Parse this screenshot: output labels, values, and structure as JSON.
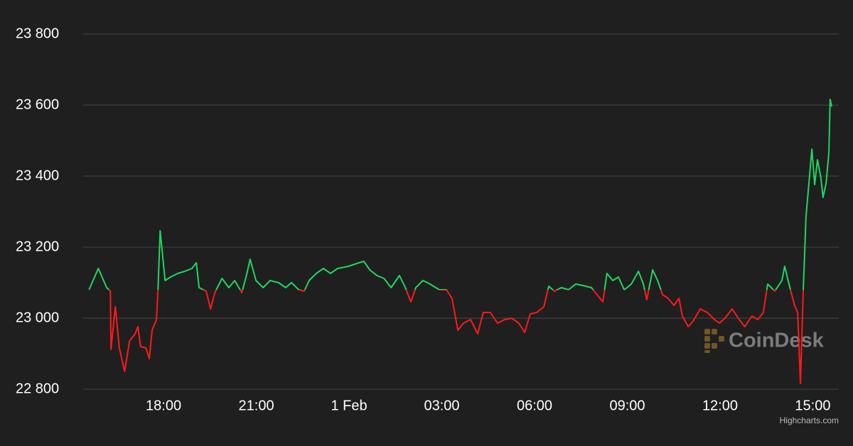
{
  "chart_data": {
    "type": "line",
    "x": [
      15.59,
      15.89,
      16.16,
      16.28,
      16.3,
      16.44,
      16.57,
      16.74,
      16.9,
      17.08,
      17.17,
      17.26,
      17.43,
      17.54,
      17.63,
      17.77,
      17.82,
      17.89,
      18.05,
      18.23,
      18.46,
      18.69,
      18.92,
      19.06,
      19.15,
      19.38,
      19.52,
      19.66,
      19.89,
      20.11,
      20.3,
      20.53,
      20.67,
      20.8,
      20.99,
      21.22,
      21.45,
      21.72,
      21.95,
      22.14,
      22.37,
      22.55,
      22.71,
      22.94,
      23.17,
      23.4,
      23.63,
      23.98,
      24.32,
      24.48,
      24.67,
      24.9,
      25.13,
      25.36,
      25.63,
      25.82,
      26.0,
      26.16,
      26.39,
      26.62,
      26.92,
      27.15,
      27.33,
      27.52,
      27.7,
      27.93,
      28.16,
      28.34,
      28.57,
      28.8,
      29.03,
      29.26,
      29.49,
      29.68,
      29.86,
      30.07,
      30.3,
      30.46,
      30.64,
      30.87,
      31.1,
      31.33,
      31.56,
      31.84,
      32.02,
      32.21,
      32.34,
      32.53,
      32.71,
      32.9,
      33.13,
      33.36,
      33.52,
      33.63,
      33.82,
      33.98,
      34.14,
      34.32,
      34.51,
      34.67,
      34.78,
      34.97,
      35.13,
      35.36,
      35.59,
      35.82,
      35.98,
      36.16,
      36.39,
      36.62,
      36.8,
      37.03,
      37.22,
      37.4,
      37.54,
      37.77,
      38.0,
      38.09,
      38.23,
      38.41,
      38.51,
      38.6,
      38.69,
      38.78,
      38.87,
      38.97,
      39.06,
      39.15,
      39.26,
      39.33,
      39.43,
      39.52,
      39.56,
      39.61
    ],
    "series": [
      {
        "color_up": "#1ed760",
        "color_down": "#ff1a1a",
        "values": [
          23080,
          23140,
          23086,
          23076,
          22912,
          23032,
          22916,
          22850,
          22936,
          22956,
          22976,
          22920,
          22916,
          22886,
          22966,
          22996,
          23080,
          23246,
          23106,
          23116,
          23126,
          23132,
          23140,
          23156,
          23086,
          23076,
          23026,
          23072,
          23112,
          23086,
          23106,
          23072,
          23116,
          23166,
          23106,
          23086,
          23106,
          23100,
          23086,
          23100,
          23080,
          23076,
          23106,
          23126,
          23140,
          23126,
          23140,
          23146,
          23156,
          23160,
          23136,
          23120,
          23112,
          23086,
          23120,
          23086,
          23046,
          23086,
          23106,
          23096,
          23080,
          23080,
          23056,
          22966,
          22986,
          22996,
          22956,
          23016,
          23016,
          22986,
          22996,
          23000,
          22986,
          22960,
          23012,
          23016,
          23032,
          23090,
          23076,
          23086,
          23080,
          23096,
          23092,
          23086,
          23066,
          23046,
          23126,
          23106,
          23116,
          23080,
          23096,
          23132,
          23096,
          23052,
          23136,
          23106,
          23066,
          23056,
          23036,
          23056,
          23006,
          22976,
          22992,
          23026,
          23016,
          22996,
          22986,
          23000,
          23026,
          22996,
          22976,
          23006,
          22996,
          23016,
          23096,
          23076,
          23106,
          23146,
          23096,
          23036,
          23016,
          22816,
          23076,
          23286,
          23376,
          23476,
          23376,
          23446,
          23396,
          23340,
          23380,
          23466,
          23616,
          23596
        ]
      }
    ],
    "xlim": [
      15.4,
      39.84
    ],
    "xticks": [
      {
        "value": 18,
        "label": "18:00"
      },
      {
        "value": 21,
        "label": "21:00"
      },
      {
        "value": 24,
        "label": "1 Feb"
      },
      {
        "value": 27,
        "label": "03:00"
      },
      {
        "value": 30,
        "label": "06:00"
      },
      {
        "value": 33,
        "label": "09:00"
      },
      {
        "value": 36,
        "label": "12:00"
      },
      {
        "value": 39,
        "label": "15:00"
      }
    ],
    "ylim": [
      22800,
      23800
    ],
    "yticks": [
      {
        "value": 22800,
        "label": "22 800"
      },
      {
        "value": 23000,
        "label": "23 000"
      },
      {
        "value": 23200,
        "label": "23 200"
      },
      {
        "value": 23400,
        "label": "23 400"
      },
      {
        "value": 23600,
        "label": "23 600"
      },
      {
        "value": 23800,
        "label": "23 800"
      }
    ],
    "grid": true,
    "watermark": "CoinDesk",
    "credit": "Highcharts.com"
  }
}
